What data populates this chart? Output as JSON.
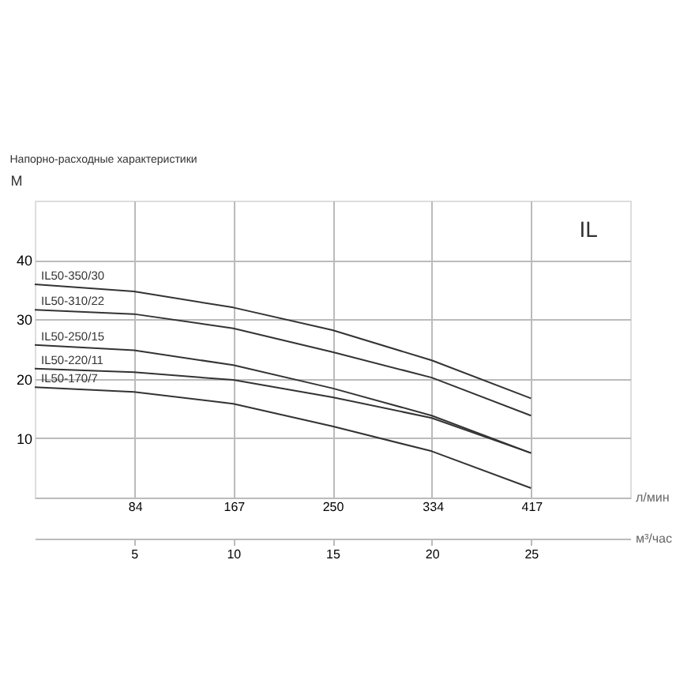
{
  "chart_data": {
    "type": "line",
    "title": "Напорно-расходные характеристики",
    "ylabel": "М",
    "xlabel": "м³/час",
    "x2label": "л/мин",
    "x": [
      0,
      5,
      10,
      15,
      20,
      25
    ],
    "series": [
      {
        "name": "IL50-350/30",
        "color": "#333333",
        "values": [
          35.9,
          34.7,
          32.0,
          28.2,
          23.1,
          16.7
        ]
      },
      {
        "name": "IL50-310/22",
        "color": "#333333",
        "values": [
          31.6,
          30.9,
          28.5,
          24.5,
          20.2,
          13.8
        ]
      },
      {
        "name": "IL50-250/15",
        "color": "#333333",
        "values": [
          25.7,
          24.8,
          22.3,
          18.4,
          13.8,
          7.5
        ]
      },
      {
        "name": "IL50-220/11",
        "color": "#333333",
        "values": [
          21.7,
          21.1,
          19.8,
          16.9,
          13.4,
          7.5
        ]
      },
      {
        "name": "IL50-170/7",
        "color": "#333333",
        "values": [
          18.6,
          17.8,
          15.8,
          12.0,
          7.8,
          1.6
        ]
      }
    ],
    "xlim": [
      0,
      30
    ],
    "xticks": [
      5,
      10,
      15,
      20,
      25
    ],
    "x2lim": [
      0,
      500
    ],
    "x2ticks": [
      84,
      167,
      250,
      334,
      417
    ],
    "ylim": [
      0,
      50
    ],
    "yticks": [
      10,
      20,
      30,
      40
    ],
    "grid": true,
    "legend": false,
    "marker": "none",
    "line_style": "solid",
    "annotations": [
      "IL"
    ]
  }
}
